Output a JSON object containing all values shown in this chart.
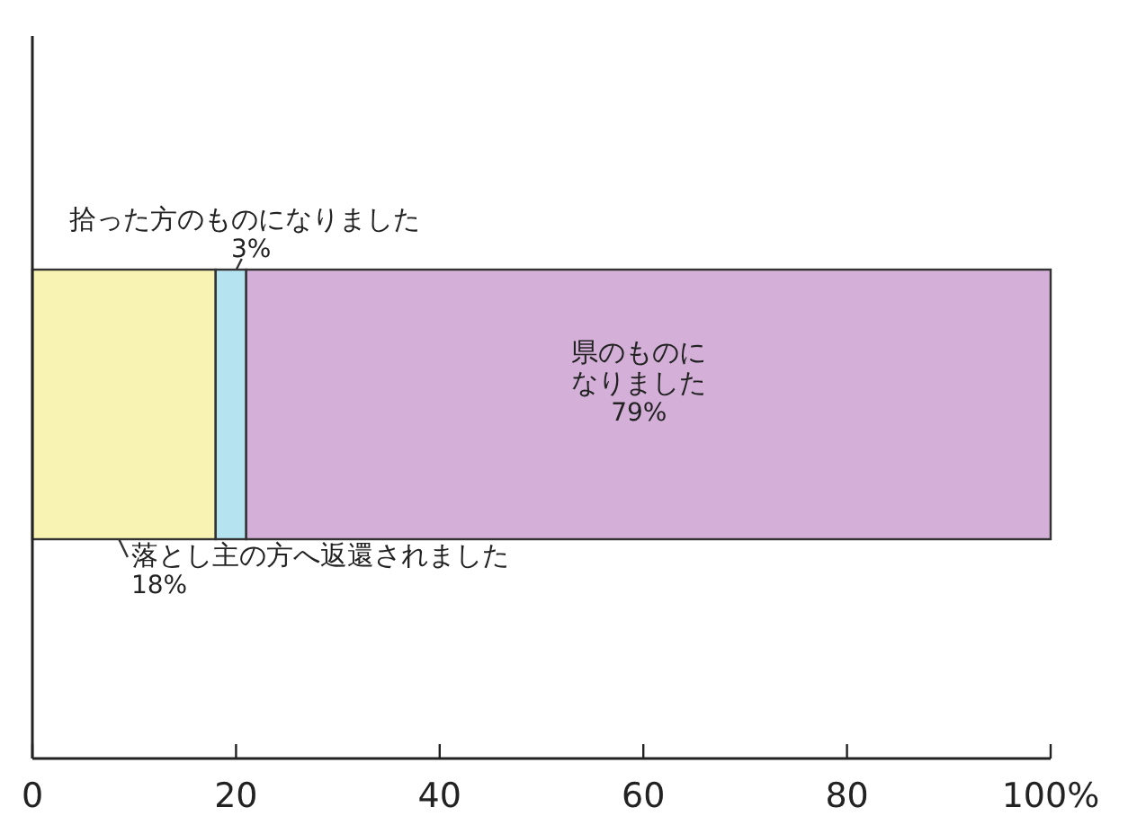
{
  "chart_data": {
    "type": "bar",
    "orientation": "horizontal",
    "stacked": true,
    "categories": [
      null
    ],
    "series": [
      {
        "name": "落とし主の方へ返還されました",
        "color": "#f8f3b2",
        "values": [
          18
        ],
        "value_labels": [
          "18%"
        ]
      },
      {
        "name": "拾った方のものになりました",
        "color": "#b5e3f0",
        "values": [
          3
        ],
        "value_labels": [
          "3%"
        ]
      },
      {
        "name": "県のものになりました",
        "color": "#d4b0d8",
        "values": [
          79
        ],
        "value_labels": [
          "79%"
        ]
      }
    ],
    "xlim": [
      0,
      100
    ],
    "xticks": [
      0,
      20,
      40,
      60,
      80,
      {
        "value": 100,
        "label": "100%"
      }
    ],
    "tick_labels": "x",
    "grid": false
  }
}
